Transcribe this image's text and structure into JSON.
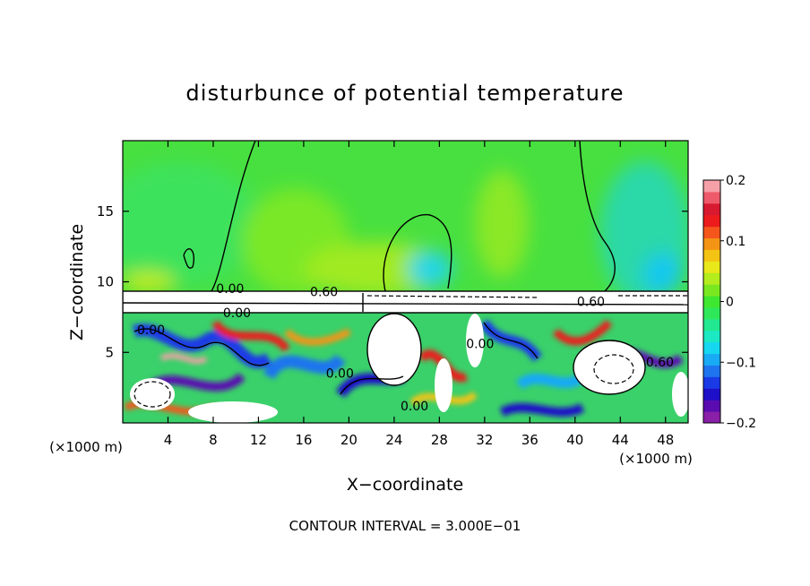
{
  "chart_data": {
    "type": "heatmap",
    "title": "disturbunce of potential temperature",
    "xlabel": "X−coordinate",
    "ylabel": "Z−coordinate",
    "x_unit_label": "(×1000 m)",
    "x_unit_label_right": "(×1000 m)",
    "xlim": [
      0,
      50
    ],
    "ylim": [
      0,
      20
    ],
    "x_ticks": [
      {
        "value": 4,
        "label": "4"
      },
      {
        "value": 8,
        "label": "8"
      },
      {
        "value": 12,
        "label": "12"
      },
      {
        "value": 16,
        "label": "16"
      },
      {
        "value": 20,
        "label": "20"
      },
      {
        "value": 24,
        "label": "24"
      },
      {
        "value": 28,
        "label": "28"
      },
      {
        "value": 32,
        "label": "32"
      },
      {
        "value": 36,
        "label": "36"
      },
      {
        "value": 40,
        "label": "40"
      },
      {
        "value": 44,
        "label": "44"
      },
      {
        "value": 48,
        "label": "48"
      }
    ],
    "y_ticks": [
      {
        "value": 5,
        "label": "5"
      },
      {
        "value": 10,
        "label": "10"
      },
      {
        "value": 15,
        "label": "15"
      }
    ],
    "colorbar": {
      "range": [
        -0.2,
        0.2
      ],
      "ticks": [
        {
          "value": 0.2,
          "label": "0.2"
        },
        {
          "value": 0.1,
          "label": "0.1"
        },
        {
          "value": 0,
          "label": "0"
        },
        {
          "value": -0.1,
          "label": "−0.1"
        },
        {
          "value": -0.2,
          "label": "−0.2"
        }
      ],
      "colors": [
        "#8a1fa8",
        "#5a0cb0",
        "#1e10c8",
        "#1a3ae6",
        "#1e74ee",
        "#18aaf4",
        "#16d6f0",
        "#1ce8c4",
        "#22e890",
        "#2ee85a",
        "#3ee830",
        "#7ae820",
        "#b4ec1e",
        "#e8e81a",
        "#f4c414",
        "#f49414",
        "#f4561c",
        "#ec1c1c",
        "#d81a30",
        "#ee5a6a",
        "#f6a0a8"
      ]
    },
    "contour_labels": [
      {
        "text": "0.00",
        "x": 9.5,
        "z": 9.2
      },
      {
        "text": "0.60",
        "x": 17.8,
        "z": 9.0
      },
      {
        "text": "0.00",
        "x": 2.5,
        "z": 6.3
      },
      {
        "text": "0.00",
        "x": 10.1,
        "z": 7.5
      },
      {
        "text": "0.00",
        "x": 19.2,
        "z": 3.2
      },
      {
        "text": "0.00",
        "x": 25.8,
        "z": 0.9
      },
      {
        "text": "0.00",
        "x": 31.6,
        "z": 5.3
      },
      {
        "text": "0.60",
        "x": 41.4,
        "z": 8.3
      },
      {
        "text": "0.60",
        "x": 47.5,
        "z": 4.0
      }
    ],
    "contour_interval_text": "CONTOUR INTERVAL = 3.000E−01",
    "legend_placement": "right",
    "grid": false
  }
}
